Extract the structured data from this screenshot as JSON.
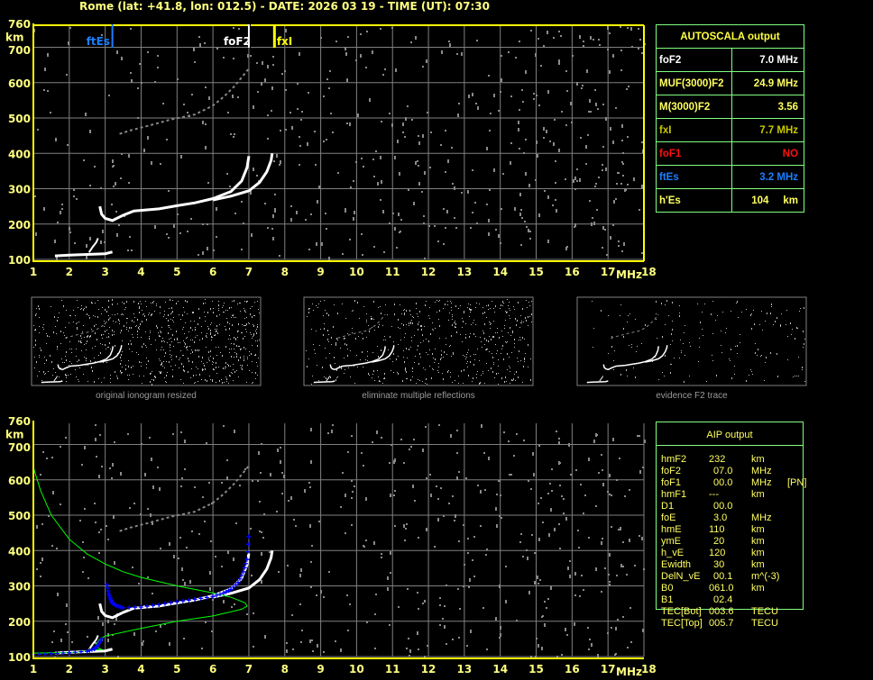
{
  "header": {
    "title": "Rome (lat: +41.8, lon: 012.5) - DATE: 2026 03 19 - TIME (UT): 07:30"
  },
  "colors": {
    "axis": "#ffff00",
    "grid": "#808080",
    "trace": "#ffffff",
    "profile": "#00ff00",
    "aip_fit": "#0000ff",
    "ftEs": "#1a7fff",
    "foF2": "#ffffff",
    "fxI": "#ffff00",
    "table_border": "#80ff80"
  },
  "chart_data": [
    {
      "type": "scatter",
      "title": "",
      "xlabel": "MHz",
      "ylabel": "km",
      "xlim": [
        1,
        18
      ],
      "ylim": [
        100,
        760
      ],
      "x_ticks": [
        "1",
        "2",
        "3",
        "4",
        "5",
        "6",
        "7",
        "8",
        "9",
        "10",
        "11",
        "12",
        "13",
        "14",
        "15",
        "16",
        "17",
        "18"
      ],
      "y_ticks": [
        "100",
        "200",
        "300",
        "400",
        "500",
        "600",
        "700",
        "760"
      ],
      "grid": true,
      "markers": [
        {
          "label": "ftEs",
          "freq": 3.2,
          "color": "#1a7fff"
        },
        {
          "label": "foF2",
          "freq": 7.0,
          "color": "#ffffff"
        },
        {
          "label": "fxI",
          "freq": 7.7,
          "color": "#ffff00"
        }
      ],
      "traces": {
        "E": [
          [
            1.6,
            110
          ],
          [
            2.0,
            112
          ],
          [
            2.5,
            114
          ],
          [
            3.0,
            116
          ],
          [
            3.2,
            121
          ]
        ],
        "Es": [
          [
            2.55,
            120
          ],
          [
            2.65,
            135
          ],
          [
            2.75,
            148
          ],
          [
            2.8,
            160
          ]
        ],
        "F_ordinary": [
          [
            2.85,
            250
          ],
          [
            2.9,
            228
          ],
          [
            3.0,
            216
          ],
          [
            3.2,
            210
          ],
          [
            3.5,
            225
          ],
          [
            3.8,
            237
          ],
          [
            4.5,
            243
          ],
          [
            5.0,
            252
          ],
          [
            5.5,
            260
          ],
          [
            6.0,
            272
          ],
          [
            6.5,
            292
          ],
          [
            6.8,
            322
          ],
          [
            6.95,
            360
          ],
          [
            7.0,
            392
          ]
        ],
        "F_extraordinary": [
          [
            6.0,
            268
          ],
          [
            6.5,
            279
          ],
          [
            7.0,
            294
          ],
          [
            7.3,
            318
          ],
          [
            7.5,
            348
          ],
          [
            7.62,
            380
          ],
          [
            7.65,
            400
          ]
        ],
        "F_second_hop": [
          [
            3.4,
            455
          ],
          [
            3.7,
            465
          ],
          [
            4.2,
            478
          ],
          [
            4.8,
            495
          ],
          [
            5.5,
            510
          ],
          [
            6.0,
            535
          ],
          [
            6.3,
            560
          ],
          [
            6.6,
            590
          ],
          [
            7.0,
            640
          ]
        ]
      }
    },
    {
      "type": "line",
      "title": "",
      "xlabel": "MHz",
      "ylabel": "km",
      "xlim": [
        1,
        18
      ],
      "ylim": [
        100,
        760
      ],
      "x_ticks": [
        "1",
        "2",
        "3",
        "4",
        "5",
        "6",
        "7",
        "8",
        "9",
        "10",
        "11",
        "12",
        "13",
        "14",
        "15",
        "16",
        "17",
        "18"
      ],
      "y_ticks": [
        "100",
        "200",
        "300",
        "400",
        "500",
        "600",
        "700",
        "760"
      ],
      "grid": true,
      "series": [
        {
          "color": "#00ff00",
          "points": [
            [
              1.0,
              635
            ],
            [
              1.2,
              570
            ],
            [
              1.5,
              500
            ],
            [
              2.0,
              432
            ],
            [
              2.5,
              390
            ],
            [
              3.0,
              362
            ],
            [
              3.5,
              340
            ],
            [
              4.0,
              324
            ],
            [
              5.0,
              300
            ],
            [
              6.0,
              280
            ],
            [
              6.5,
              268
            ],
            [
              6.9,
              252
            ],
            [
              6.95,
              243
            ],
            [
              6.8,
              234
            ],
            [
              6.3,
              222
            ],
            [
              6.0,
              215
            ],
            [
              5.0,
              200
            ],
            [
              4.0,
              180
            ],
            [
              3.0,
              158
            ],
            [
              2.85,
              150
            ],
            [
              2.75,
              135
            ],
            [
              2.8,
              125
            ],
            [
              2.9,
              120
            ],
            [
              2.6,
              118
            ],
            [
              2.2,
              112
            ],
            [
              1.0,
              110
            ]
          ]
        },
        {
          "color": "#0000ff",
          "points": [
            [
              1.0,
              106
            ],
            [
              1.5,
              108
            ],
            [
              2.0,
              111
            ],
            [
              2.5,
              115
            ],
            [
              2.7,
              122
            ],
            [
              2.8,
              132
            ],
            [
              2.9,
              150
            ],
            [
              3.05,
              303
            ],
            [
              3.1,
              277
            ],
            [
              3.15,
              262
            ],
            [
              3.2,
              252
            ],
            [
              3.3,
              244
            ],
            [
              3.5,
              238
            ],
            [
              4.0,
              240
            ],
            [
              4.5,
              247
            ],
            [
              5.0,
              255
            ],
            [
              5.5,
              262
            ],
            [
              6.0,
              270
            ],
            [
              6.3,
              280
            ],
            [
              6.5,
              290
            ],
            [
              6.7,
              310
            ],
            [
              6.85,
              340
            ],
            [
              6.95,
              375
            ],
            [
              7.0,
              440
            ]
          ]
        }
      ]
    }
  ],
  "thumbnails": [
    {
      "caption": "original ionogram resized"
    },
    {
      "caption": "eliminate multiple reflections"
    },
    {
      "caption": "evidence F2 trace"
    }
  ],
  "autoscala": {
    "title": "AUTOSCALA output",
    "rows": [
      {
        "label": "foF2",
        "value": "7.0 MHz",
        "color": "#ffffff"
      },
      {
        "label": "MUF(3000)F2",
        "value": "24.9 MHz",
        "color": "#ffff60"
      },
      {
        "label": "M(3000)F2",
        "value": "3.56",
        "color": "#ffff60"
      },
      {
        "label": "fxI",
        "value": "7.7 MHz",
        "color": "#c8c800"
      },
      {
        "label": "foF1",
        "value": "NO",
        "color": "#ff1010"
      },
      {
        "label": "ftEs",
        "value": "3.2 MHz",
        "color": "#1a7fff"
      },
      {
        "label": "h'Es",
        "value": "104     km",
        "color": "#ffff60"
      }
    ]
  },
  "aip": {
    "title": "AIP output",
    "rows": [
      {
        "label": "hmF2",
        "value": "232",
        "unit": "km",
        "note": ""
      },
      {
        "label": "foF2",
        "value": "07.0",
        "unit": "MHz",
        "note": ""
      },
      {
        "label": "foF1",
        "value": "00.0",
        "unit": "MHz",
        "note": "[PN]"
      },
      {
        "label": "hmF1",
        "value": "---",
        "unit": "km",
        "note": ""
      },
      {
        "label": "D1",
        "value": "00.0",
        "unit": "",
        "note": ""
      },
      {
        "label": "foE",
        "value": "3.0",
        "unit": "MHz",
        "note": ""
      },
      {
        "label": "hmE",
        "value": "110",
        "unit": "km",
        "note": ""
      },
      {
        "label": "ymE",
        "value": "20",
        "unit": "km",
        "note": ""
      },
      {
        "label": "h_vE",
        "value": "120",
        "unit": "km",
        "note": ""
      },
      {
        "label": "Ewidth",
        "value": "30",
        "unit": "km",
        "note": ""
      },
      {
        "label": "DelN_vE",
        "value": "00.1",
        "unit": "m^(-3)",
        "note": ""
      },
      {
        "label": "B0",
        "value": "061.0",
        "unit": "km",
        "note": ""
      },
      {
        "label": "B1",
        "value": "02.4",
        "unit": "",
        "note": ""
      },
      {
        "label": "TEC[Bot]",
        "value": "003.6",
        "unit": "TECU",
        "note": ""
      },
      {
        "label": "TEC[Top]",
        "value": "005.7",
        "unit": "TECU",
        "note": ""
      }
    ]
  }
}
